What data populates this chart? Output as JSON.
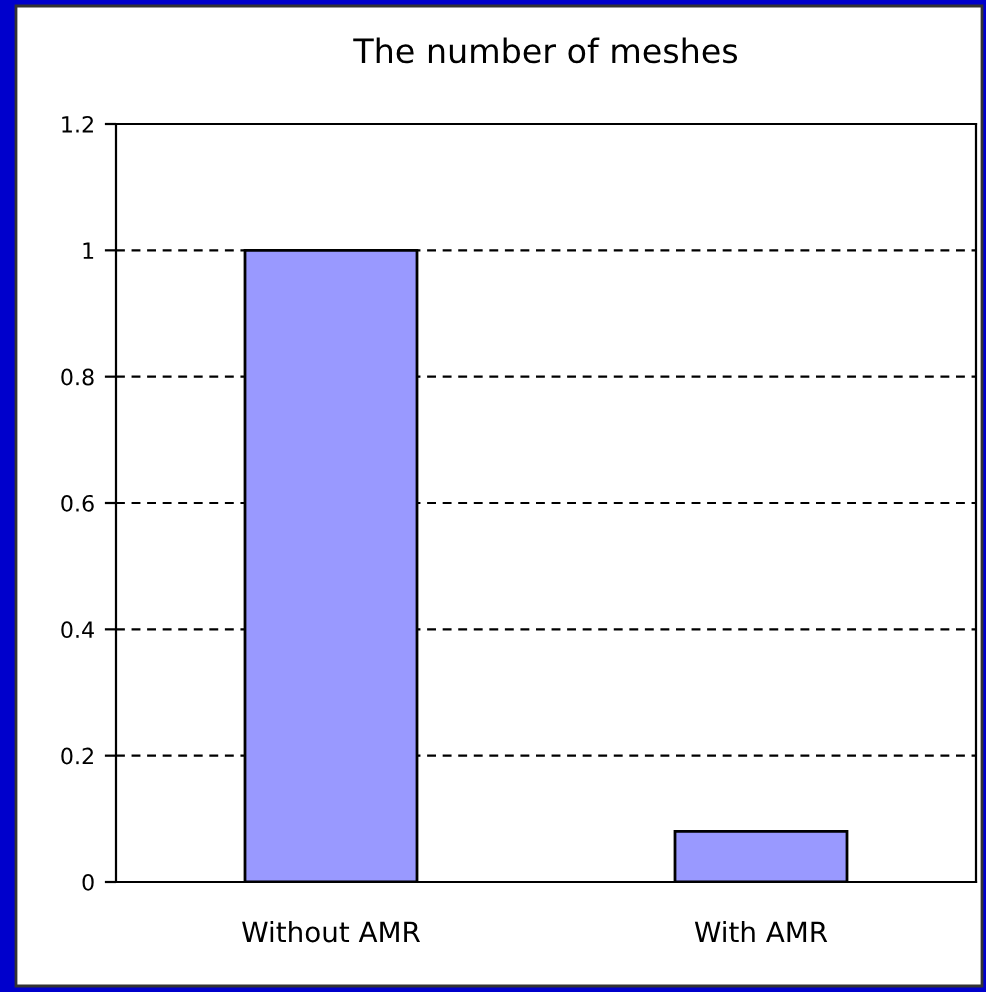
{
  "chart_data": {
    "type": "bar",
    "title": "The number of meshes",
    "categories": [
      "Without AMR",
      "With AMR"
    ],
    "values": [
      1,
      0.08
    ],
    "color": "#9999ff",
    "ylim": [
      0,
      1.2
    ],
    "yticks": [
      0,
      {
        "value": 0.2,
        "label": "0.2"
      },
      {
        "value": 0.4,
        "label": "0.4"
      },
      {
        "value": 0.6,
        "label": "0.6"
      },
      {
        "value": 0.8,
        "label": "0.8"
      },
      1,
      {
        "value": 1.2,
        "label": "1.2"
      }
    ],
    "grid": "y",
    "line_style": "dashed"
  }
}
